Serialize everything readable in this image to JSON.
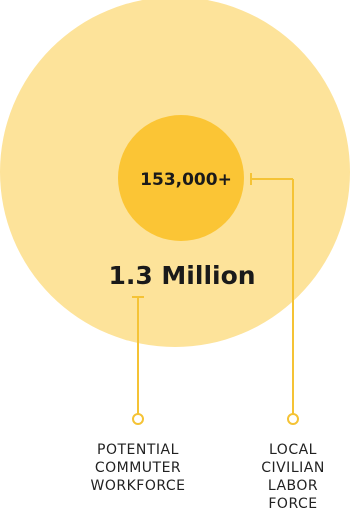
{
  "outer_circle": {
    "value_label": "1.3 Million",
    "color": "#fde39a"
  },
  "inner_circle": {
    "value_label": "153,000+",
    "color": "#fbc535"
  },
  "connector_color": "#f5c335",
  "labels": {
    "commuter": [
      "POTENTIAL",
      "COMMUTER",
      "WORKFORCE"
    ],
    "local": [
      "LOCAL",
      "CIVILIAN",
      "LABOR",
      "FORCE"
    ]
  }
}
